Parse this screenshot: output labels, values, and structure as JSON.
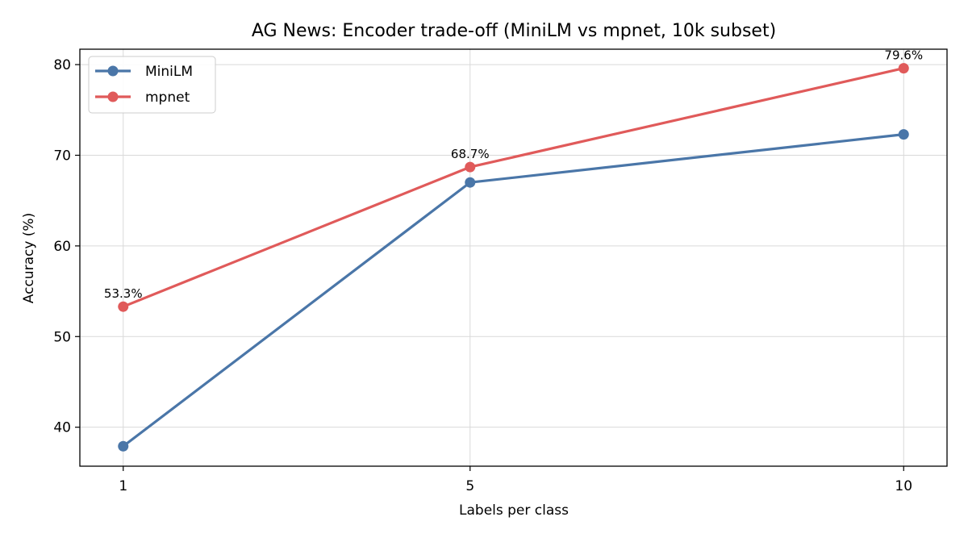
{
  "chart_data": {
    "type": "line",
    "title": "AG News: Encoder trade-off (MiniLM vs mpnet, 10k subset)",
    "xlabel": "Labels per class",
    "ylabel": "Accuracy (%)",
    "x": [
      1,
      5,
      10
    ],
    "x_tick_labels": [
      "1",
      "5",
      "10"
    ],
    "xlim": [
      0.5,
      10.5
    ],
    "ylim": [
      35.7,
      81.7
    ],
    "y_ticks": [
      40,
      50,
      60,
      70,
      80
    ],
    "y_tick_labels": [
      "40",
      "50",
      "60",
      "70",
      "80"
    ],
    "grid": true,
    "legend_position": "top-left",
    "series": [
      {
        "name": "MiniLM",
        "color": "#4a76a8",
        "values": [
          37.9,
          67.0,
          72.3
        ]
      },
      {
        "name": "mpnet",
        "color": "#e05a5a",
        "values": [
          53.3,
          68.7,
          79.6
        ]
      }
    ],
    "annotations": [
      {
        "series": "mpnet",
        "x": 1,
        "y": 53.3,
        "text": "53.3%"
      },
      {
        "series": "mpnet",
        "x": 5,
        "y": 68.7,
        "text": "68.7%"
      },
      {
        "series": "mpnet",
        "x": 10,
        "y": 79.6,
        "text": "79.6%"
      }
    ]
  }
}
